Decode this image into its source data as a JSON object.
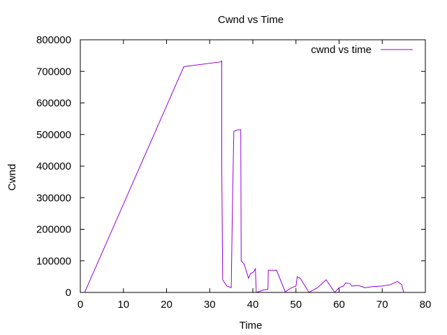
{
  "chart_data": {
    "type": "line",
    "title": "Cwnd vs Time",
    "xlabel": "Time",
    "ylabel": "Cwnd",
    "xlim": [
      0,
      80
    ],
    "ylim": [
      0,
      800000
    ],
    "x_ticks": [
      0,
      10,
      20,
      30,
      40,
      50,
      60,
      70,
      80
    ],
    "y_ticks": [
      0,
      100000,
      200000,
      300000,
      400000,
      500000,
      600000,
      700000,
      800000
    ],
    "grid": false,
    "legend_position": "top-right",
    "series": [
      {
        "name": "cwnd vs time",
        "color": "#9400d3",
        "points": [
          [
            1,
            0
          ],
          [
            24,
            715000
          ],
          [
            32.5,
            730000
          ],
          [
            32.8,
            733000
          ],
          [
            32.8,
            400000
          ],
          [
            33.0,
            40000
          ],
          [
            34.0,
            20000
          ],
          [
            35.0,
            15000
          ],
          [
            35.3,
            300000
          ],
          [
            35.6,
            510000
          ],
          [
            36.5,
            515000
          ],
          [
            37.2,
            515000
          ],
          [
            37.3,
            100000
          ],
          [
            38.0,
            90000
          ],
          [
            39.0,
            45000
          ],
          [
            39.5,
            60000
          ],
          [
            40.2,
            65000
          ],
          [
            40.6,
            75000
          ],
          [
            40.8,
            0
          ],
          [
            41.5,
            3000
          ],
          [
            42.5,
            8000
          ],
          [
            43.5,
            10000
          ],
          [
            43.6,
            70000
          ],
          [
            45.5,
            70000
          ],
          [
            47.5,
            2000
          ],
          [
            49.0,
            15000
          ],
          [
            50.0,
            20000
          ],
          [
            50.3,
            50000
          ],
          [
            51.0,
            45000
          ],
          [
            53.0,
            0
          ],
          [
            55.0,
            15000
          ],
          [
            57.0,
            40000
          ],
          [
            59.0,
            0
          ],
          [
            60.0,
            15000
          ],
          [
            61.0,
            20000
          ],
          [
            61.5,
            30000
          ],
          [
            62.5,
            28000
          ],
          [
            63.0,
            20000
          ],
          [
            64.5,
            22000
          ],
          [
            66.0,
            15000
          ],
          [
            67.5,
            18000
          ],
          [
            70.0,
            20000
          ],
          [
            72.0,
            25000
          ],
          [
            73.5,
            35000
          ],
          [
            74.5,
            25000
          ],
          [
            75.0,
            0
          ]
        ]
      }
    ]
  }
}
